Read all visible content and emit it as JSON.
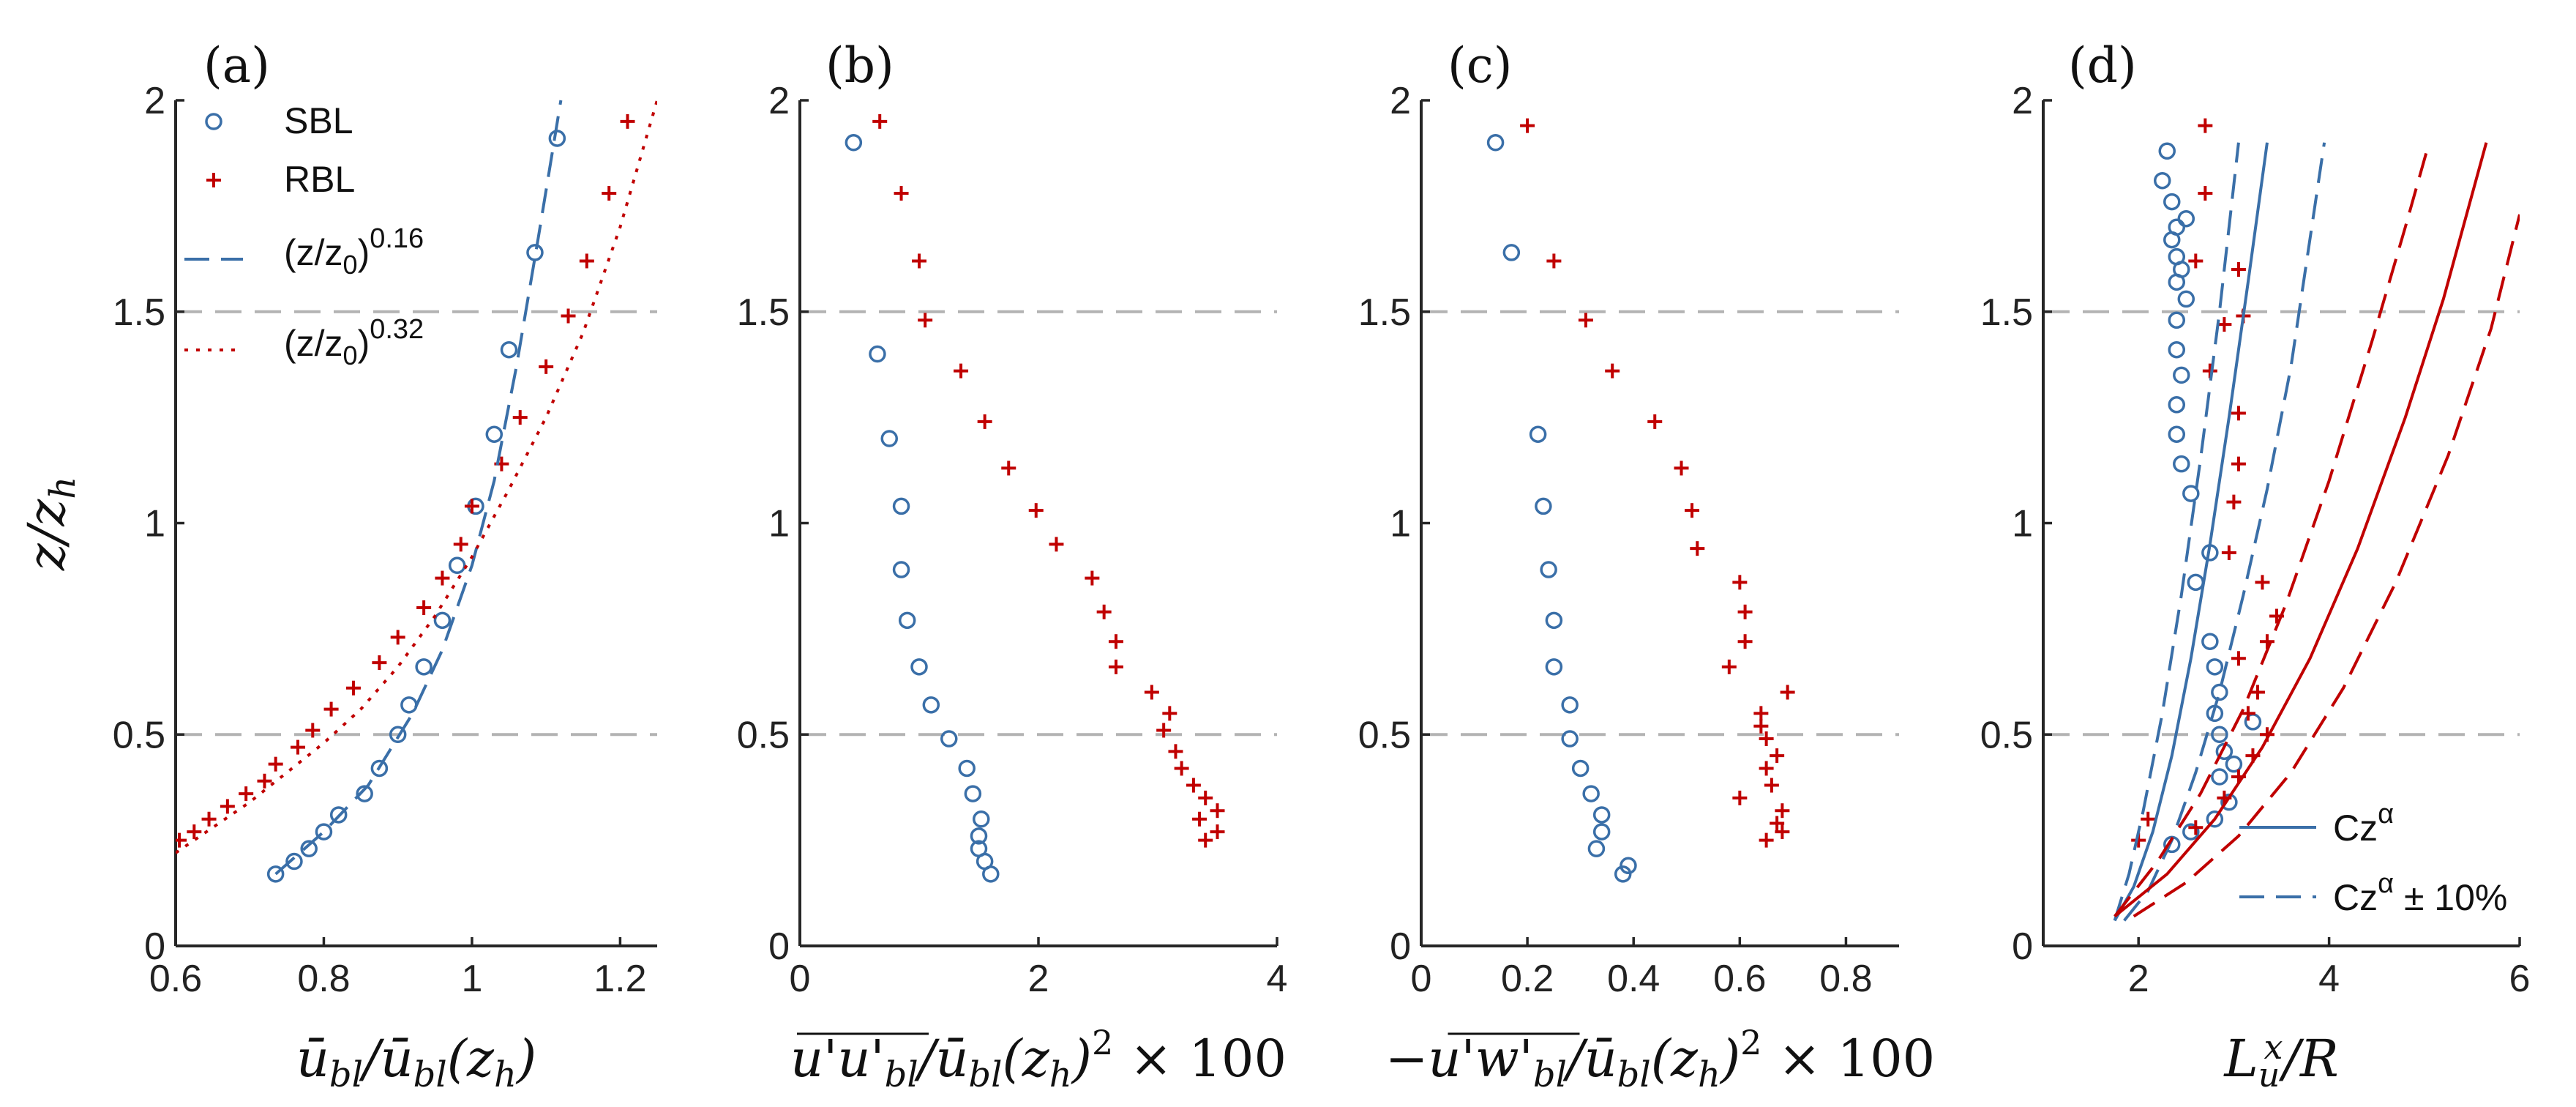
{
  "figure": {
    "ylabel": "z/z_h"
  },
  "chart_data": [
    {
      "type": "scatter",
      "panel": "(a)",
      "xlabel": "ū_bl / ū_bl(z_h)",
      "ylabel": "z/z_h",
      "xlim": [
        0.6,
        1.25
      ],
      "ylim": [
        0,
        2
      ],
      "xticks": [
        "0.6",
        "0.8",
        "1",
        "1.2"
      ],
      "yticks": [
        "0",
        "0.5",
        "1",
        "1.5",
        "2"
      ],
      "hlines": [
        0.5,
        1.5
      ],
      "legend": {
        "position": "top-left",
        "entries": [
          {
            "label": "SBL",
            "marker": "circle",
            "color": "#3a6fa8"
          },
          {
            "label": "RBL",
            "marker": "plus",
            "color": "#c00000"
          },
          {
            "label": "(z/z_0)^0.16",
            "base": "(z/z",
            "sub": "0",
            "tail": ")",
            "sup": "0.16",
            "style": "dashed",
            "color": "#3a6fa8"
          },
          {
            "label": "(z/z_0)^0.32",
            "base": "(z/z",
            "sub": "0",
            "tail": ")",
            "sup": "0.32",
            "style": "dotted",
            "color": "#c00000"
          }
        ]
      },
      "series": [
        {
          "name": "SBL",
          "marker": "circle",
          "color": "#3a6fa8",
          "x": [
            0.735,
            0.76,
            0.78,
            0.8,
            0.82,
            0.855,
            0.875,
            0.9,
            0.915,
            0.935,
            0.96,
            0.98,
            1.005,
            1.03,
            1.05,
            1.085,
            1.115
          ],
          "y": [
            0.17,
            0.2,
            0.23,
            0.27,
            0.31,
            0.36,
            0.42,
            0.5,
            0.57,
            0.66,
            0.77,
            0.9,
            1.04,
            1.21,
            1.41,
            1.64,
            1.91
          ]
        },
        {
          "name": "RBL",
          "marker": "plus",
          "color": "#c00000",
          "x": [
            0.605,
            0.625,
            0.645,
            0.67,
            0.695,
            0.72,
            0.735,
            0.765,
            0.785,
            0.81,
            0.84,
            0.875,
            0.9,
            0.935,
            0.96,
            0.985,
            1.0,
            1.04,
            1.065,
            1.1,
            1.13,
            1.155,
            1.185,
            1.21
          ],
          "y": [
            0.25,
            0.27,
            0.3,
            0.33,
            0.36,
            0.39,
            0.43,
            0.47,
            0.51,
            0.56,
            0.61,
            0.67,
            0.73,
            0.8,
            0.87,
            0.95,
            1.04,
            1.14,
            1.25,
            1.37,
            1.49,
            1.62,
            1.78,
            1.95
          ]
        },
        {
          "name": "(z/z0)^0.16",
          "type": "line",
          "style": "dashed",
          "color": "#3a6fa8",
          "x": [
            0.735,
            0.8,
            0.86,
            0.92,
            0.96,
            1.0,
            1.03,
            1.06,
            1.09,
            1.12
          ],
          "y": [
            0.17,
            0.27,
            0.38,
            0.55,
            0.7,
            0.9,
            1.1,
            1.37,
            1.68,
            2.0
          ]
        },
        {
          "name": "(z/z0)^0.32",
          "type": "line",
          "style": "dotted",
          "color": "#c00000",
          "x": [
            0.6,
            0.65,
            0.7,
            0.75,
            0.8,
            0.85,
            0.9,
            0.95,
            1.0,
            1.05,
            1.1,
            1.15,
            1.2,
            1.25
          ],
          "y": [
            0.22,
            0.28,
            0.34,
            0.41,
            0.48,
            0.56,
            0.66,
            0.78,
            0.92,
            1.08,
            1.25,
            1.45,
            1.7,
            2.0
          ]
        }
      ]
    },
    {
      "type": "scatter",
      "panel": "(b)",
      "xlabel": "u'u'_bl / ū_bl(z_h)^2 × 100",
      "xlim": [
        0,
        4
      ],
      "ylim": [
        0,
        2
      ],
      "xticks": [
        "0",
        "2",
        "4"
      ],
      "yticks": [
        "0",
        "0.5",
        "1",
        "1.5",
        "2"
      ],
      "hlines": [
        0.5,
        1.5
      ],
      "series": [
        {
          "name": "SBL",
          "marker": "circle",
          "color": "#3a6fa8",
          "x": [
            1.6,
            1.55,
            1.5,
            1.5,
            1.52,
            1.45,
            1.4,
            1.25,
            1.1,
            1.0,
            0.9,
            0.85,
            0.85,
            0.75,
            0.65,
            0.45
          ],
          "y": [
            0.17,
            0.2,
            0.23,
            0.26,
            0.3,
            0.36,
            0.42,
            0.49,
            0.57,
            0.66,
            0.77,
            0.89,
            1.04,
            1.2,
            1.4,
            1.9
          ]
        },
        {
          "name": "RBL",
          "marker": "plus",
          "color": "#c00000",
          "x": [
            3.4,
            3.5,
            3.35,
            3.5,
            3.4,
            3.3,
            3.2,
            3.15,
            3.05,
            3.1,
            2.95,
            2.65,
            2.65,
            2.55,
            2.45,
            2.15,
            1.98,
            1.75,
            1.55,
            1.35,
            1.05,
            1.0,
            0.85,
            0.67
          ],
          "y": [
            0.25,
            0.27,
            0.3,
            0.32,
            0.35,
            0.38,
            0.42,
            0.46,
            0.51,
            0.55,
            0.6,
            0.66,
            0.72,
            0.79,
            0.87,
            0.95,
            1.03,
            1.13,
            1.24,
            1.36,
            1.48,
            1.62,
            1.78,
            1.95
          ]
        }
      ]
    },
    {
      "type": "scatter",
      "panel": "(c)",
      "xlabel": "−u'w'_bl / ū_bl(z_h)^2 × 100",
      "xlim": [
        0,
        0.9
      ],
      "ylim": [
        0,
        2
      ],
      "xticks": [
        "0",
        "0.2",
        "0.4",
        "0.6",
        "0.8"
      ],
      "yticks": [
        "0",
        "0.5",
        "1",
        "1.5",
        "2"
      ],
      "hlines": [
        0.5,
        1.5
      ],
      "series": [
        {
          "name": "SBL",
          "marker": "circle",
          "color": "#3a6fa8",
          "x": [
            0.38,
            0.39,
            0.33,
            0.34,
            0.34,
            0.32,
            0.3,
            0.28,
            0.28,
            0.25,
            0.25,
            0.24,
            0.23,
            0.22,
            0.14,
            0.17
          ],
          "y": [
            0.17,
            0.19,
            0.23,
            0.27,
            0.31,
            0.36,
            0.42,
            0.49,
            0.57,
            0.66,
            0.77,
            0.89,
            1.04,
            1.21,
            1.9,
            1.64
          ]
        },
        {
          "name": "RBL",
          "marker": "plus",
          "color": "#c00000",
          "x": [
            0.65,
            0.68,
            0.67,
            0.68,
            0.6,
            0.66,
            0.65,
            0.67,
            0.65,
            0.64,
            0.64,
            0.69,
            0.58,
            0.61,
            0.61,
            0.6,
            0.52,
            0.51,
            0.49,
            0.44,
            0.36,
            0.31,
            0.25,
            0.2
          ],
          "y": [
            0.25,
            0.27,
            0.29,
            0.32,
            0.35,
            0.38,
            0.42,
            0.45,
            0.49,
            0.52,
            0.55,
            0.6,
            0.66,
            0.72,
            0.79,
            0.86,
            0.94,
            1.03,
            1.13,
            1.24,
            1.36,
            1.48,
            1.62,
            1.94
          ]
        }
      ]
    },
    {
      "type": "scatter",
      "panel": "(d)",
      "xlabel": "L_u^x / R",
      "xlim": [
        1,
        6
      ],
      "ylim": [
        0,
        2
      ],
      "xticks": [
        "2",
        "4",
        "6"
      ],
      "yticks": [
        "0",
        "0.5",
        "1",
        "1.5",
        "2"
      ],
      "hlines": [
        0.5,
        1.5
      ],
      "legend": {
        "position": "bottom-right",
        "entries": [
          {
            "label": "Cz^α",
            "base": "Cz",
            "sup": "α",
            "style": "solid",
            "color": "#3a6fa8"
          },
          {
            "label": "Cz^α ± 10%",
            "base": "Cz",
            "sup": "α",
            "tail": "± 10%",
            "style": "dashed",
            "color": "#3a6fa8"
          }
        ]
      },
      "series": [
        {
          "name": "SBL",
          "marker": "circle",
          "color": "#3a6fa8",
          "x": [
            2.35,
            2.55,
            2.8,
            2.95,
            2.85,
            3.0,
            3.2,
            2.9,
            2.85,
            2.8,
            2.85,
            2.8,
            2.75,
            2.6,
            2.75,
            2.55,
            2.45,
            2.4,
            2.4,
            2.45,
            2.4,
            2.4,
            2.5,
            2.4,
            2.45,
            2.4,
            2.35,
            2.4,
            2.5,
            2.35,
            2.25,
            2.3
          ],
          "y": [
            0.24,
            0.27,
            0.3,
            0.34,
            0.4,
            0.43,
            0.53,
            0.46,
            0.5,
            0.55,
            0.6,
            0.66,
            0.72,
            0.86,
            0.93,
            1.07,
            1.14,
            1.21,
            1.28,
            1.35,
            1.41,
            1.48,
            1.53,
            1.57,
            1.6,
            1.63,
            1.67,
            1.7,
            1.72,
            1.76,
            1.81,
            1.88
          ]
        },
        {
          "name": "RBL",
          "marker": "plus",
          "color": "#c00000",
          "x": [
            2.0,
            2.1,
            2.6,
            2.9,
            3.05,
            3.2,
            3.35,
            3.15,
            3.25,
            3.05,
            3.35,
            3.45,
            3.3,
            2.95,
            3.0,
            3.05,
            3.05,
            2.75,
            2.9,
            3.1,
            3.05,
            2.6,
            2.7,
            2.7
          ],
          "y": [
            0.25,
            0.3,
            0.28,
            0.35,
            0.4,
            0.45,
            0.5,
            0.55,
            0.6,
            0.68,
            0.72,
            0.78,
            0.86,
            0.93,
            1.05,
            1.14,
            1.26,
            1.36,
            1.47,
            1.49,
            1.6,
            1.62,
            1.78,
            1.94
          ]
        },
        {
          "name": "SBL Cz^α",
          "type": "line",
          "style": "solid",
          "color": "#3a6fa8",
          "x": [
            1.75,
            1.95,
            2.15,
            2.35,
            2.55,
            2.75,
            2.95,
            3.15,
            3.35
          ],
          "y": [
            0.06,
            0.14,
            0.27,
            0.45,
            0.68,
            0.95,
            1.25,
            1.57,
            1.9
          ]
        },
        {
          "name": "SBL Cz^α -10%",
          "type": "line",
          "style": "dashed",
          "color": "#3a6fa8",
          "x": [
            1.75,
            1.9,
            2.05,
            2.25,
            2.45,
            2.65,
            2.85,
            3.05
          ],
          "y": [
            0.06,
            0.17,
            0.32,
            0.55,
            0.83,
            1.15,
            1.5,
            1.9
          ]
        },
        {
          "name": "SBL Cz^α +10%",
          "type": "line",
          "style": "dashed",
          "color": "#3a6fa8",
          "x": [
            1.85,
            2.1,
            2.35,
            2.6,
            2.85,
            3.1,
            3.35,
            3.6,
            3.95
          ],
          "y": [
            0.06,
            0.13,
            0.25,
            0.41,
            0.6,
            0.83,
            1.08,
            1.37,
            1.9
          ]
        },
        {
          "name": "RBL Cz^α",
          "type": "line",
          "style": "solid",
          "color": "#c00000",
          "x": [
            1.75,
            2.3,
            2.8,
            3.3,
            3.8,
            4.3,
            4.8,
            5.2,
            5.65
          ],
          "y": [
            0.07,
            0.17,
            0.3,
            0.47,
            0.68,
            0.94,
            1.25,
            1.53,
            1.9
          ]
        },
        {
          "name": "RBL Cz^α -10%",
          "type": "line",
          "style": "dashed",
          "color": "#c00000",
          "x": [
            1.75,
            2.2,
            2.65,
            3.1,
            3.55,
            4.0,
            4.45,
            4.8,
            5.05
          ],
          "y": [
            0.07,
            0.2,
            0.36,
            0.56,
            0.81,
            1.1,
            1.43,
            1.7,
            1.9
          ]
        },
        {
          "name": "RBL Cz^α +10%",
          "type": "line",
          "style": "dashed",
          "color": "#c00000",
          "x": [
            1.95,
            2.5,
            3.05,
            3.6,
            4.15,
            4.7,
            5.25,
            5.7,
            6.0
          ],
          "y": [
            0.07,
            0.15,
            0.26,
            0.41,
            0.61,
            0.86,
            1.16,
            1.46,
            1.73
          ]
        }
      ]
    }
  ]
}
